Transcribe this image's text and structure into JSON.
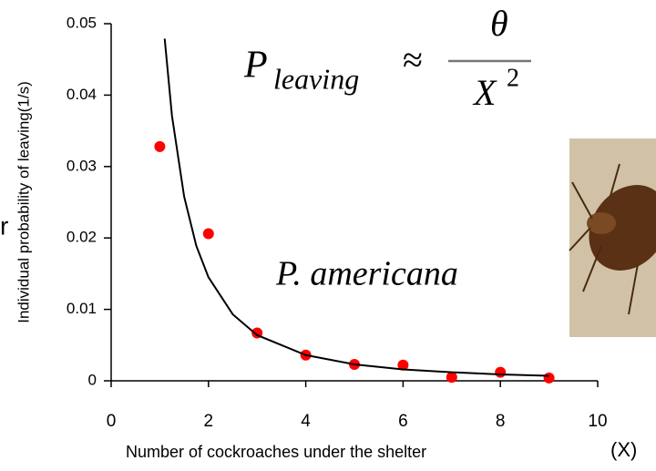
{
  "chart_data": {
    "type": "scatter",
    "x_label": "Number of cockroaches under the shelter",
    "y_label": "Individual probability of leaving(1/s)",
    "x_unit": "(X)",
    "xlim": [
      0,
      10
    ],
    "xticks": [
      0,
      2,
      4,
      6,
      8,
      10
    ],
    "ylim": [
      0,
      0.05
    ],
    "yticks": [
      0,
      0.01,
      0.02,
      0.03,
      0.04,
      0.05
    ],
    "series": [
      {
        "color": "#ff0000",
        "x": [
          1,
          2,
          3,
          4,
          5,
          6,
          7,
          8,
          9
        ],
        "values": [
          0.0328,
          0.0206,
          0.0067,
          0.0036,
          0.0023,
          0.0022,
          0.0005,
          0.0012,
          0.0004
        ]
      },
      {
        "type": "line",
        "color": "#000000",
        "x": [
          1.1,
          1.25,
          1.5,
          1.75,
          2,
          2.5,
          3,
          4,
          5,
          6,
          7,
          8,
          9
        ],
        "values": [
          0.0479,
          0.0371,
          0.0258,
          0.0189,
          0.0145,
          0.0093,
          0.0064,
          0.0036,
          0.0023,
          0.0016,
          0.0012,
          0.0009,
          0.0007
        ]
      }
    ],
    "annotations": {
      "formula": {
        "lhs": "P",
        "sub": "leaving",
        "approx": "≈",
        "numerator": "θ",
        "denominator": "X",
        "exponent": "2"
      },
      "species": "P. americana",
      "cut_text": "r"
    }
  }
}
